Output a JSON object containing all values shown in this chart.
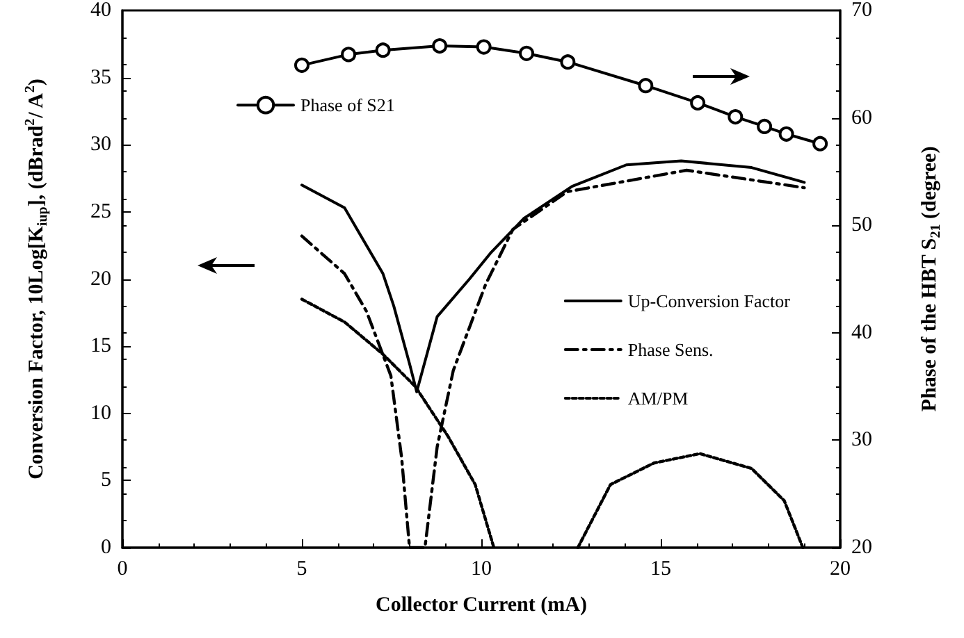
{
  "chart_data": {
    "type": "line",
    "xlabel": "Collector Current (mA)",
    "ylabel": "Conversion Factor, 10Log[K$_{iup}$], (dBrad$^{2}$/ A$^{2}$)",
    "y2label": "Phase of the HBT S$_{21}$ (degree)",
    "x": [
      5,
      6.19,
      7.26,
      7.56,
      8.01,
      8.2,
      8.77,
      9.67,
      10.28,
      11.18,
      12.53,
      14.04,
      15.57,
      17.53,
      19.0
    ],
    "series": [
      {
        "name": "Up-Conversion Factor",
        "color": "#000000",
        "line_style": "solid",
        "marker": "none",
        "values": [
          27.0,
          25.3,
          20.4,
          18.0,
          13.6,
          11.6,
          17.2,
          20.0,
          22.0,
          24.5,
          26.9,
          28.5,
          28.8,
          28.3,
          27.2
        ]
      },
      {
        "name": "Phase Sens.",
        "color": "#000000",
        "line_style": "dashed",
        "marker": "none",
        "x": [
          5,
          6.19,
          6.8,
          7.48,
          7.78,
          8.0,
          8.43,
          8.77,
          9.22,
          10.12,
          10.88,
          12.39,
          15.72,
          19.0
        ],
        "values": [
          23.2,
          20.4,
          17.6,
          12.8,
          6.7,
          0,
          0,
          7.5,
          13.2,
          19.6,
          23.7,
          26.5,
          28.1,
          26.8
        ]
      },
      {
        "name": "AM/PM",
        "color": "#000000",
        "line_style": "dotted",
        "marker": "none",
        "x": [
          5,
          6.19,
          7.26,
          8.16,
          9.07,
          9.83,
          10.35,
          11.5,
          12.69,
          13.6,
          14.81,
          16.09,
          17.53,
          18.44,
          18.96
        ],
        "values": [
          18.5,
          16.8,
          14.4,
          12.0,
          8.3,
          4.7,
          0,
          null,
          0,
          4.7,
          6.3,
          7.0,
          5.9,
          3.5,
          0
        ]
      },
      {
        "name": "Phase of S21",
        "color": "#000000",
        "line_style": "solid",
        "marker": "circle",
        "axis": "y2",
        "x": [
          5,
          6.3,
          7.26,
          8.84,
          10.07,
          11.26,
          12.41,
          14.58,
          16.03,
          17.08,
          17.89,
          18.5,
          19.44
        ],
        "values": [
          64.9,
          65.9,
          66.3,
          66.7,
          66.6,
          66.0,
          65.2,
          63.0,
          61.4,
          60.1,
          59.2,
          58.5,
          57.6
        ]
      }
    ],
    "xlim": [
      0,
      20
    ],
    "xticks": [
      0,
      5,
      10,
      15,
      20
    ],
    "ylim": [
      0,
      40
    ],
    "yticks": [
      0,
      5,
      10,
      15,
      20,
      25,
      30,
      35,
      40
    ],
    "y2lim": [
      20,
      70
    ],
    "y2ticks": [
      20,
      30,
      40,
      50,
      60,
      70
    ],
    "grid": false,
    "legend": "right"
  }
}
